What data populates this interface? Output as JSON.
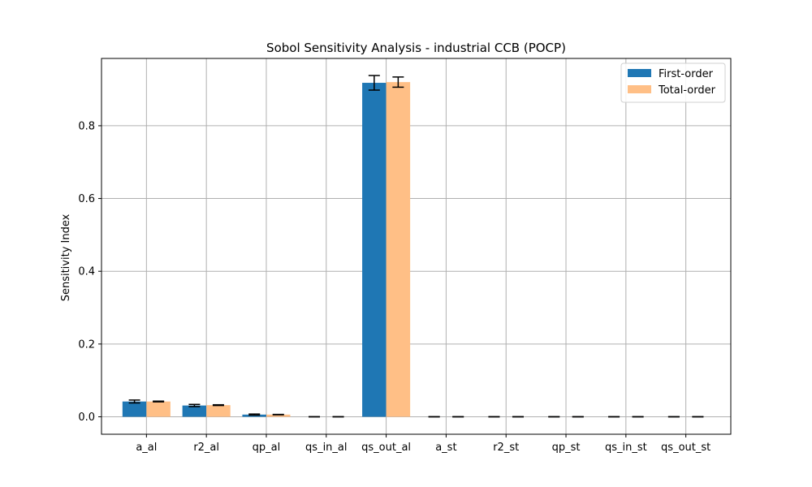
{
  "chart_data": {
    "type": "bar",
    "title": "Sobol Sensitivity Analysis - industrial CCB (POCP)",
    "xlabel": "",
    "ylabel": "Sensitivity Index",
    "categories": [
      "a_al",
      "r2_al",
      "qp_al",
      "qs_in_al",
      "qs_out_al",
      "a_st",
      "r2_st",
      "qp_st",
      "qs_in_st",
      "qs_out_st"
    ],
    "series": [
      {
        "name": "First-order",
        "color": "#1f77b4",
        "values": [
          0.042,
          0.031,
          0.006,
          0.0,
          0.918,
          0.0,
          0.0,
          0.0,
          0.0,
          0.0
        ],
        "errors": [
          0.004,
          0.003,
          0.0015,
          0.0003,
          0.02,
          0.0003,
          0.0003,
          0.0003,
          0.0003,
          0.0003
        ]
      },
      {
        "name": "Total-order",
        "color": "#ffbf86",
        "values": [
          0.042,
          0.032,
          0.006,
          0.0,
          0.92,
          0.0,
          0.0,
          0.0,
          0.0,
          0.0
        ],
        "errors": [
          0.001,
          0.001,
          0.0005,
          0.0003,
          0.014,
          0.0003,
          0.0003,
          0.0003,
          0.0003,
          0.0003
        ]
      }
    ],
    "ylim": [
      -0.048,
      0.985
    ],
    "yticks": [
      0.0,
      0.2,
      0.4,
      0.6,
      0.8
    ],
    "ytick_labels": [
      "0.0",
      "0.2",
      "0.4",
      "0.6",
      "0.8"
    ],
    "grid": true,
    "legend_position": "top-right"
  }
}
